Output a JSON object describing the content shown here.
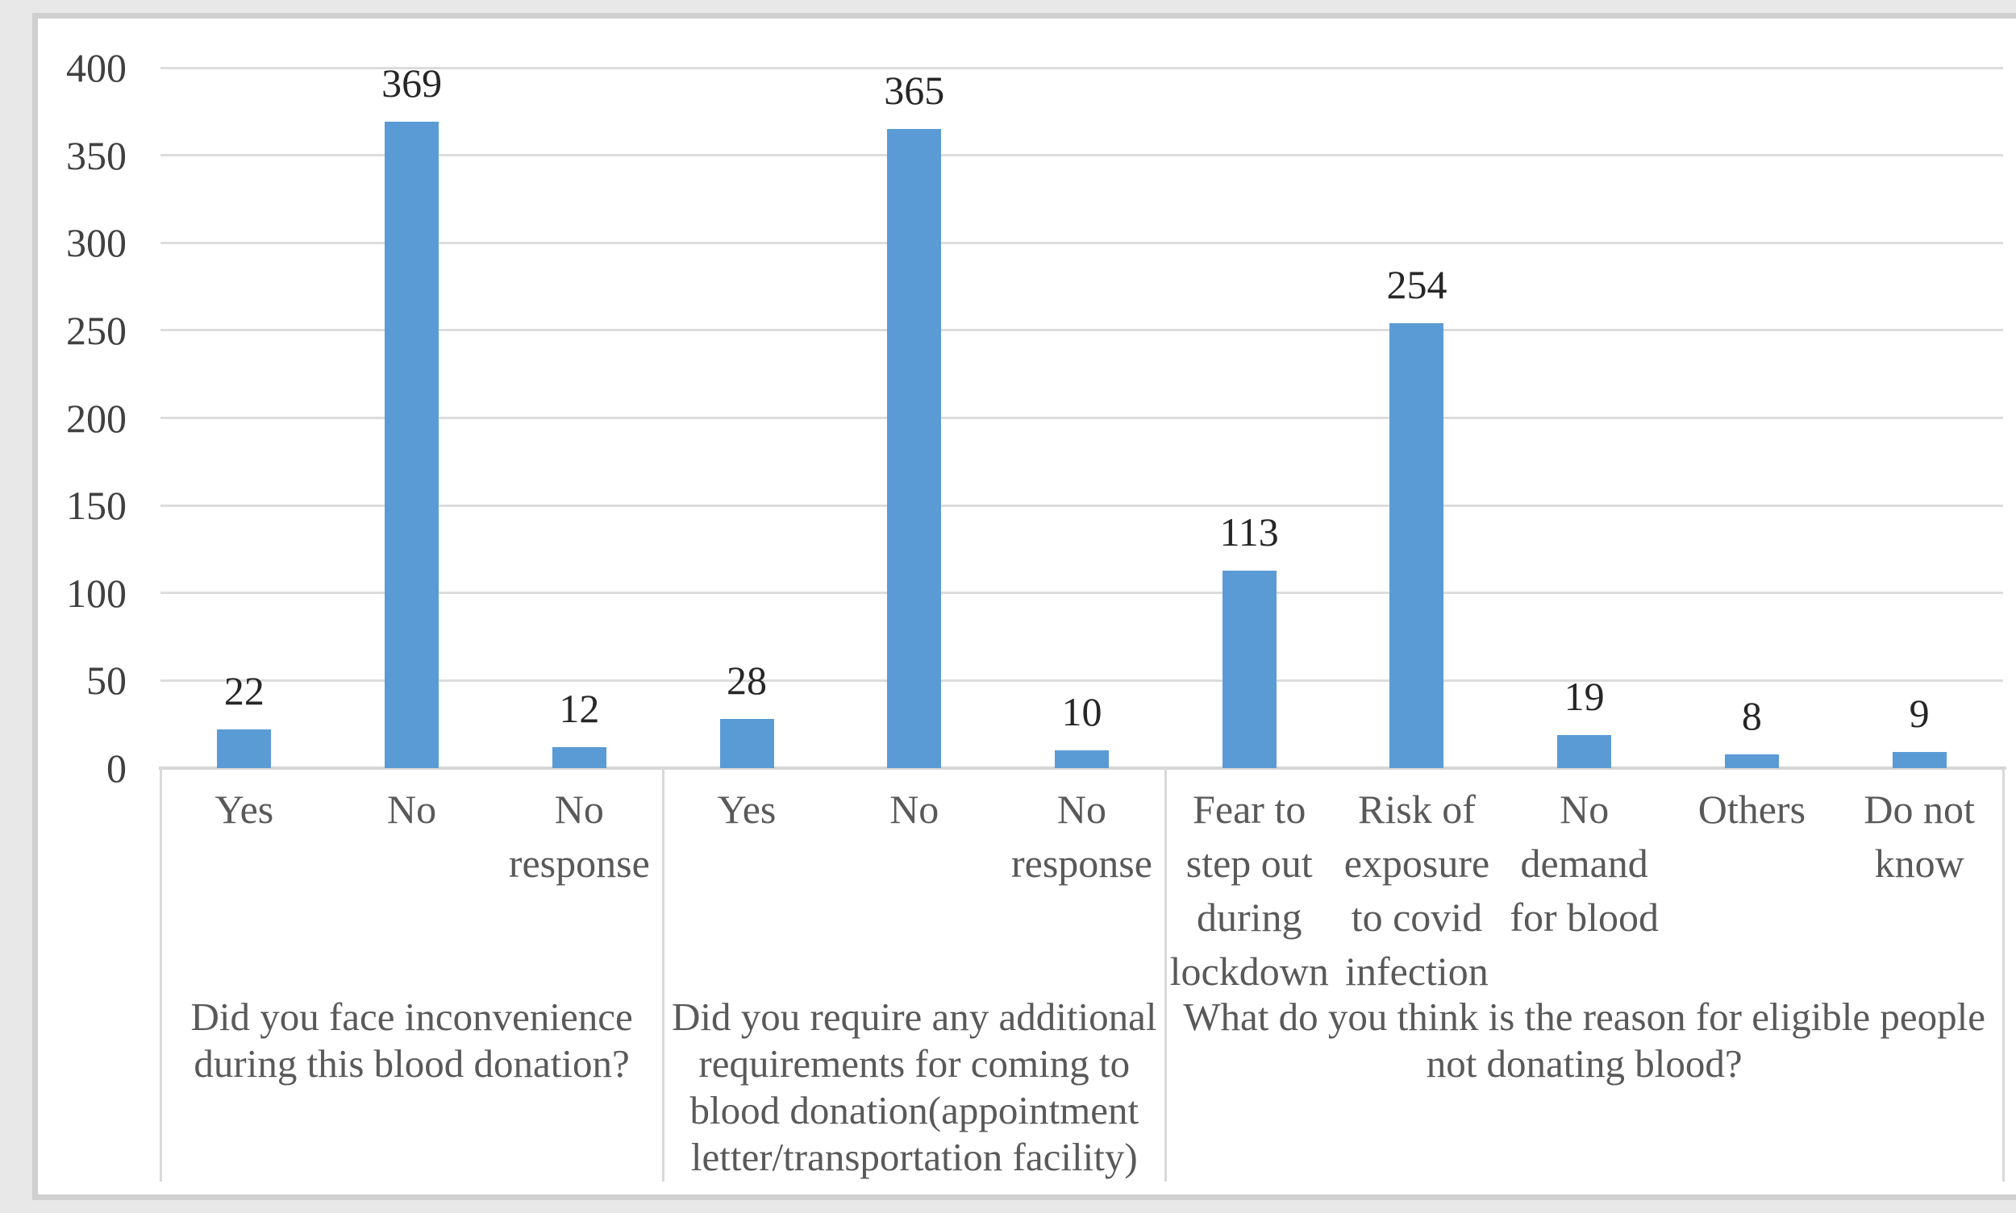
{
  "chart_data": {
    "type": "bar",
    "title": "",
    "xlabel": "",
    "ylabel": "",
    "ylim": [
      0,
      400
    ],
    "ytick_interval": 50,
    "ytick_labels": [
      "0",
      "50",
      "100",
      "150",
      "200",
      "250",
      "300",
      "350",
      "400"
    ],
    "grid": true,
    "legend_position": "none",
    "bar_color": "#5b9bd5",
    "groups": [
      {
        "question": "Did you face inconvenience during this blood donation?",
        "categories": [
          "Yes",
          "No",
          "No response"
        ],
        "values": [
          22,
          369,
          12
        ]
      },
      {
        "question": "Did you require any additional requirements for coming to blood donation(appointment letter/transportation facility)",
        "categories": [
          "Yes",
          "No",
          "No response"
        ],
        "values": [
          28,
          365,
          10
        ]
      },
      {
        "question": "What do you think is the reason for eligible people not donating blood?",
        "categories": [
          "Fear to step out during lockdown",
          "Risk of exposure to covid infection",
          "No demand for blood",
          "Others",
          "Do not know"
        ],
        "values": [
          113,
          254,
          19,
          8,
          9
        ]
      }
    ],
    "categories": [
      "Yes",
      "No",
      "No response",
      "Yes",
      "No",
      "No response",
      "Fear to step out during lockdown",
      "Risk of exposure to covid infection",
      "No demand for blood",
      "Others",
      "Do not know"
    ],
    "values": [
      22,
      369,
      12,
      28,
      365,
      10,
      113,
      254,
      19,
      8,
      9
    ],
    "data_labels_shown": true
  },
  "colors": {
    "bar": "#5b9bd5",
    "gridline": "#dcdcdc",
    "axis_line": "#d6d6d6",
    "separator": "#d9d9d9",
    "frame": "#cfcfcf",
    "ytick_text": "#404040",
    "data_label_text": "#262626",
    "category_text": "#595959",
    "background": "#ffffff"
  }
}
